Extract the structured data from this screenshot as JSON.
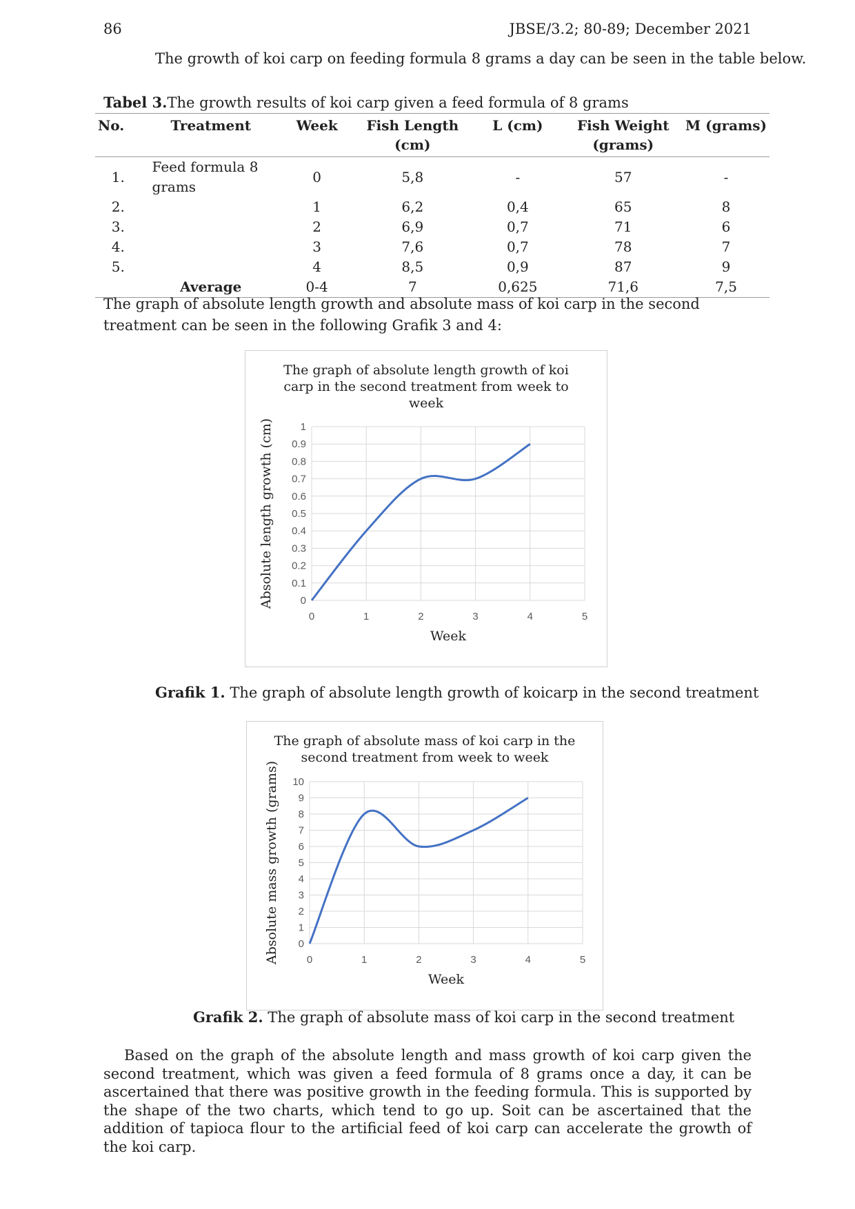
{
  "header": {
    "page_number": "86",
    "journal": "JBSE/3.2; 80-89; December 2021"
  },
  "intro_text": "The growth of koi carp on feeding formula 8 grams a day can be seen in the table below.",
  "table": {
    "caption_bold": "Tabel 3.",
    "caption_text": "The growth results of koi carp given a feed formula of 8 grams",
    "headers": [
      "No.",
      "Treatment",
      "Week",
      "Fish Length",
      "L (cm)",
      "Fish Weight",
      "M (grams)"
    ],
    "header_units": [
      "",
      "",
      "",
      "(cm)",
      "",
      "(grams)",
      ""
    ],
    "rows": [
      [
        "1.",
        "Feed formula 8 grams",
        "0",
        "5,8",
        "-",
        "57",
        "-"
      ],
      [
        "2.",
        "",
        "1",
        "6,2",
        "0,4",
        "65",
        "8"
      ],
      [
        "3.",
        "",
        "2",
        "6,9",
        "0,7",
        "71",
        "6"
      ],
      [
        "4.",
        "",
        "3",
        "7,6",
        "0,7",
        "78",
        "7"
      ],
      [
        "5.",
        "",
        "4",
        "8,5",
        "0,9",
        "87",
        "9"
      ]
    ],
    "average_row": [
      "",
      "Average",
      "0-4",
      "7",
      "0,625",
      "71,6",
      "7,5"
    ]
  },
  "graph_intro": "The graph of absolute length growth and absolute mass of koi carp in the second treatment can be seen in the following Grafik 3 and 4:",
  "chart_data": [
    {
      "type": "line",
      "title": "The graph of absolute length growth of koi carp in the second treatment from week to week",
      "title_lines": [
        "The graph of absolute length growth of koi",
        "carp in the second treatment from week to",
        "week"
      ],
      "xlabel": "Week",
      "ylabel": "Absolute length growth (cm)",
      "xlim": [
        0,
        5
      ],
      "ylim": [
        0,
        1
      ],
      "xticks": [
        "0",
        "1",
        "2",
        "3",
        "4",
        "5"
      ],
      "yticks": [
        "0",
        "0.1",
        "0.2",
        "0.3",
        "0.4",
        "0.5",
        "0.6",
        "0.7",
        "0.8",
        "0.9",
        "1"
      ],
      "x": [
        0,
        1,
        2,
        3,
        4
      ],
      "y": [
        0,
        0.4,
        0.7,
        0.7,
        0.9
      ],
      "grid": true,
      "smooth": true,
      "line_color": "#4472c4"
    },
    {
      "type": "line",
      "title": "The graph of absolute mass of koi carp in the second treatment from week to week",
      "title_lines": [
        "The graph of absolute mass of koi carp in the",
        "second treatment from week to week"
      ],
      "xlabel": "Week",
      "ylabel": "Absolute mass growth (grams)",
      "xlim": [
        0,
        5
      ],
      "ylim": [
        0,
        10
      ],
      "xticks": [
        "0",
        "1",
        "2",
        "3",
        "4",
        "5"
      ],
      "yticks": [
        "0",
        "1",
        "2",
        "3",
        "4",
        "5",
        "6",
        "7",
        "8",
        "9",
        "10"
      ],
      "x": [
        0,
        1,
        2,
        3,
        4
      ],
      "y": [
        0,
        8,
        6,
        7,
        9
      ],
      "grid": true,
      "smooth": true,
      "line_color": "#4472c4"
    }
  ],
  "captions": {
    "grafik1_bold": "Grafik 1.",
    "grafik1_text": " The graph of absolute length growth of koicarp in the second treatment",
    "grafik2_bold": "Grafik 2.",
    "grafik2_text": " The graph of absolute mass of koi carp in the second treatment"
  },
  "conclusion": "Based on the graph of the absolute length and mass growth of koi carp given the second treatment, which was given a feed formula of 8 grams once a day, it can be ascertained that there was positive growth in the feeding formula. This is supported by the shape of the two charts, which tend to go up. Soit can be ascertained that the addition of tapioca flour to the artificial feed of koi carp can accelerate the growth of the koi carp."
}
